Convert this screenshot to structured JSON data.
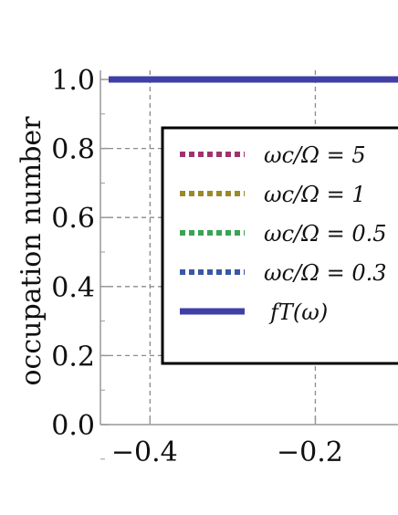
{
  "chart_data": {
    "type": "line",
    "xlabel": "",
    "ylabel": "occupation number",
    "xlim": [
      -0.46,
      -0.1
    ],
    "ylim": [
      0.0,
      1.0
    ],
    "xticks": [
      {
        "value": -0.4,
        "label": "−0.4"
      },
      {
        "value": -0.2,
        "label": "−0.2"
      }
    ],
    "yticks": [
      {
        "value": 0.0,
        "label": "0.0"
      },
      {
        "value": 0.2,
        "label": "0.2"
      },
      {
        "value": 0.4,
        "label": "0.4"
      },
      {
        "value": 0.6,
        "label": "0.6"
      },
      {
        "value": 0.8,
        "label": "0.8"
      },
      {
        "value": 1.0,
        "label": "1.0"
      }
    ],
    "grid": true,
    "legend_position": "right",
    "series": [
      {
        "name": "ωc/Ω = 5",
        "color": "#a0336e",
        "style": "dotted",
        "x": [
          -0.45,
          -0.1
        ],
        "y": [
          1.0,
          1.0
        ]
      },
      {
        "name": "ωc/Ω = 1",
        "color": "#9a8a2a",
        "style": "dotted",
        "x": [
          -0.45,
          -0.1
        ],
        "y": [
          1.0,
          1.0
        ]
      },
      {
        "name": "ωc/Ω = 0.5",
        "color": "#3aa354",
        "style": "dotted",
        "x": [
          -0.45,
          -0.1
        ],
        "y": [
          1.0,
          1.0
        ]
      },
      {
        "name": "ωc/Ω = 0.3",
        "color": "#3a57a8",
        "style": "dotted",
        "x": [
          -0.45,
          -0.1
        ],
        "y": [
          1.0,
          1.0
        ]
      },
      {
        "name": "fT(ω)",
        "color": "#3f3fa8",
        "style": "solid",
        "x": [
          -0.45,
          -0.1
        ],
        "y": [
          1.0,
          1.0
        ]
      }
    ]
  }
}
